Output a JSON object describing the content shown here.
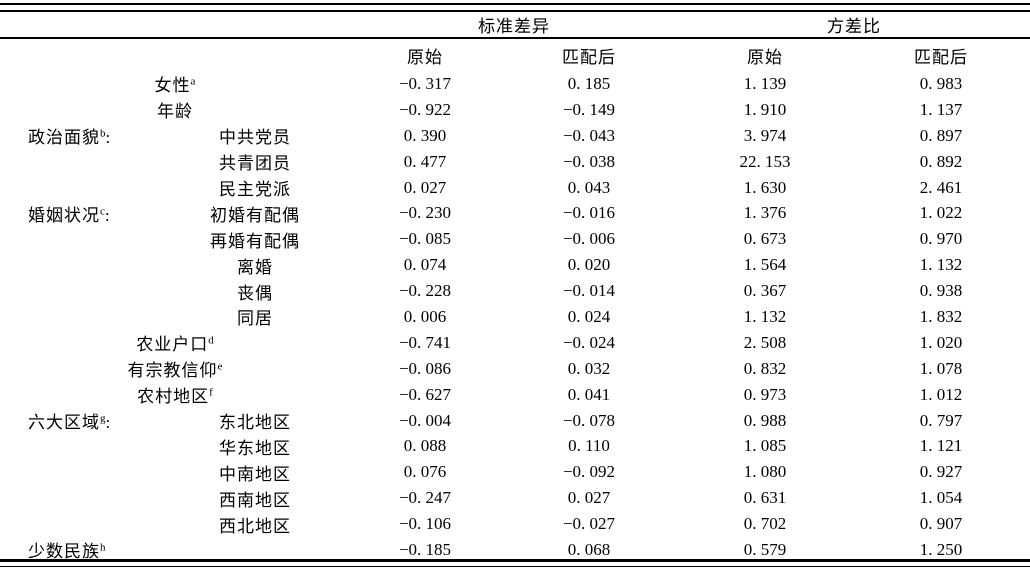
{
  "meta": {
    "background": "#ffffff",
    "text_color": "#000000",
    "rule_color": "#000000"
  },
  "table": {
    "header": {
      "group1": "标准差异",
      "group2": "方差比",
      "sub": [
        "原始",
        "匹配后",
        "原始",
        "匹配后"
      ]
    },
    "rows": [
      {
        "layout": "center",
        "label": "女性",
        "sup": "a",
        "values": [
          "−0. 317",
          "0. 185",
          "1. 139",
          "0. 983"
        ]
      },
      {
        "layout": "center",
        "label": "年龄",
        "sup": "",
        "values": [
          "−0. 922",
          "−0. 149",
          "1. 910",
          "1. 137"
        ]
      },
      {
        "layout": "item",
        "group": "政治面貌",
        "group_sup": "b",
        "group_colon": ":",
        "item": "中共党员",
        "values": [
          "0. 390",
          "−0. 043",
          "3. 974",
          "0. 897"
        ]
      },
      {
        "layout": "item",
        "group": "",
        "group_sup": "",
        "group_colon": "",
        "item": "共青团员",
        "values": [
          "0. 477",
          "−0. 038",
          "22. 153",
          "0. 892"
        ]
      },
      {
        "layout": "item",
        "group": "",
        "group_sup": "",
        "group_colon": "",
        "item": "民主党派",
        "values": [
          "0. 027",
          "0. 043",
          "1. 630",
          "2. 461"
        ]
      },
      {
        "layout": "item",
        "group": "婚姻状况",
        "group_sup": "c",
        "group_colon": ":",
        "item": "初婚有配偶",
        "values": [
          "−0. 230",
          "−0. 016",
          "1. 376",
          "1. 022"
        ]
      },
      {
        "layout": "item",
        "group": "",
        "group_sup": "",
        "group_colon": "",
        "item": "再婚有配偶",
        "values": [
          "−0. 085",
          "−0. 006",
          "0. 673",
          "0. 970"
        ]
      },
      {
        "layout": "item",
        "group": "",
        "group_sup": "",
        "group_colon": "",
        "item": "离婚",
        "values": [
          "0. 074",
          "0. 020",
          "1. 564",
          "1. 132"
        ]
      },
      {
        "layout": "item",
        "group": "",
        "group_sup": "",
        "group_colon": "",
        "item": "丧偶",
        "values": [
          "−0. 228",
          "−0. 014",
          "0. 367",
          "0. 938"
        ]
      },
      {
        "layout": "item",
        "group": "",
        "group_sup": "",
        "group_colon": "",
        "item": "同居",
        "values": [
          "0. 006",
          "0. 024",
          "1. 132",
          "1. 832"
        ]
      },
      {
        "layout": "center",
        "label": "农业户口",
        "sup": "d",
        "values": [
          "−0. 741",
          "−0. 024",
          "2. 508",
          "1. 020"
        ]
      },
      {
        "layout": "center",
        "label": "有宗教信仰",
        "sup": "e",
        "values": [
          "−0. 086",
          "0. 032",
          "0. 832",
          "1. 078"
        ]
      },
      {
        "layout": "center",
        "label": "农村地区",
        "sup": "f",
        "values": [
          "−0. 627",
          "0. 041",
          "0. 973",
          "1. 012"
        ]
      },
      {
        "layout": "item",
        "group": "六大区域",
        "group_sup": "g",
        "group_colon": ":",
        "item": "东北地区",
        "values": [
          "−0. 004",
          "−0. 078",
          "0. 988",
          "0. 797"
        ]
      },
      {
        "layout": "item",
        "group": "",
        "group_sup": "",
        "group_colon": "",
        "item": "华东地区",
        "values": [
          "0. 088",
          "0. 110",
          "1. 085",
          "1. 121"
        ]
      },
      {
        "layout": "item",
        "group": "",
        "group_sup": "",
        "group_colon": "",
        "item": "中南地区",
        "values": [
          "0. 076",
          "−0. 092",
          "1. 080",
          "0. 927"
        ]
      },
      {
        "layout": "item",
        "group": "",
        "group_sup": "",
        "group_colon": "",
        "item": "西南地区",
        "values": [
          "−0. 247",
          "0. 027",
          "0. 631",
          "1. 054"
        ]
      },
      {
        "layout": "item",
        "group": "",
        "group_sup": "",
        "group_colon": "",
        "item": "西北地区",
        "values": [
          "−0. 106",
          "−0. 027",
          "0. 702",
          "0. 907"
        ]
      },
      {
        "layout": "left",
        "label": "少数民族",
        "sup": "h",
        "values": [
          "−0. 185",
          "0. 068",
          "0. 579",
          "1. 250"
        ]
      }
    ]
  }
}
